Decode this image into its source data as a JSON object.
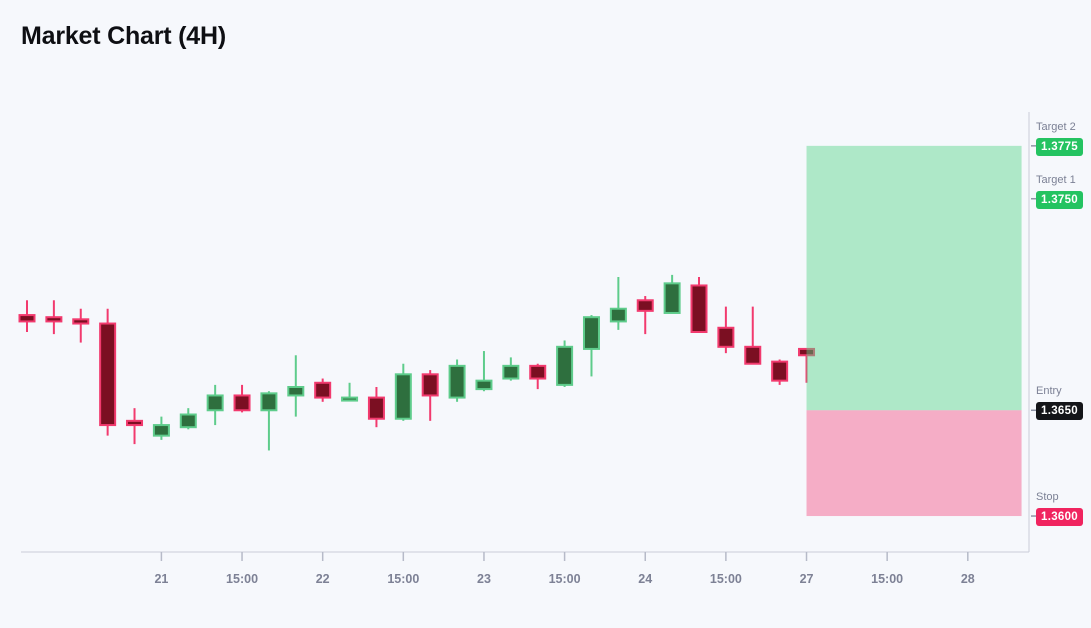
{
  "page": {
    "title": "Market Chart (4H)"
  },
  "chart_data": {
    "type": "candlestick",
    "title": "Market Chart (4H)",
    "timeframe": "4H",
    "ylim": [
      1.3583,
      1.3791
    ],
    "grid": false,
    "axis": {
      "x_axis_visible": true,
      "right_axis_visible": true
    },
    "candle_columns": [
      "open",
      "high",
      "low",
      "close"
    ],
    "candles": [
      [
        1.3695,
        1.3702,
        1.3687,
        1.3692
      ],
      [
        1.3694,
        1.3702,
        1.3686,
        1.3692
      ],
      [
        1.3693,
        1.3698,
        1.3682,
        1.3691
      ],
      [
        1.3691,
        1.3698,
        1.3638,
        1.3643
      ],
      [
        1.3645,
        1.3651,
        1.3634,
        1.3643
      ],
      [
        1.3638,
        1.3647,
        1.3636,
        1.3643
      ],
      [
        1.3642,
        1.3651,
        1.3641,
        1.3648
      ],
      [
        1.365,
        1.3662,
        1.3643,
        1.3657
      ],
      [
        1.3657,
        1.3662,
        1.3649,
        1.365
      ],
      [
        1.365,
        1.3659,
        1.3631,
        1.3658
      ],
      [
        1.3657,
        1.3676,
        1.3647,
        1.3661
      ],
      [
        1.3663,
        1.3665,
        1.3654,
        1.3656
      ],
      [
        1.3655,
        1.3663,
        1.3655,
        1.3656
      ],
      [
        1.3656,
        1.3661,
        1.3642,
        1.3646
      ],
      [
        1.3646,
        1.3672,
        1.3645,
        1.3667
      ],
      [
        1.3667,
        1.3669,
        1.3645,
        1.3657
      ],
      [
        1.3656,
        1.3674,
        1.3654,
        1.3671
      ],
      [
        1.366,
        1.3678,
        1.3659,
        1.3664
      ],
      [
        1.3665,
        1.3675,
        1.3664,
        1.3671
      ],
      [
        1.3671,
        1.3672,
        1.366,
        1.3665
      ],
      [
        1.3662,
        1.3683,
        1.3661,
        1.368
      ],
      [
        1.3679,
        1.3695,
        1.3666,
        1.3694
      ],
      [
        1.3692,
        1.3713,
        1.3688,
        1.3698
      ],
      [
        1.3702,
        1.3704,
        1.3686,
        1.3697
      ],
      [
        1.3696,
        1.3714,
        1.3696,
        1.371
      ],
      [
        1.3709,
        1.3713,
        1.3687,
        1.3687
      ],
      [
        1.3689,
        1.3699,
        1.3677,
        1.368
      ],
      [
        1.368,
        1.3699,
        1.3672,
        1.3672
      ],
      [
        1.3673,
        1.3674,
        1.3662,
        1.3664
      ],
      [
        1.3679,
        1.3679,
        1.3663,
        1.3676
      ]
    ],
    "x_ticks": [
      {
        "label": "21",
        "index": 5
      },
      {
        "label": "15:00",
        "index": 8
      },
      {
        "label": "22",
        "index": 11
      },
      {
        "label": "15:00",
        "index": 14
      },
      {
        "label": "23",
        "index": 17
      },
      {
        "label": "15:00",
        "index": 20
      },
      {
        "label": "24",
        "index": 23
      },
      {
        "label": "15:00",
        "index": 26
      },
      {
        "label": "27",
        "index": 29
      },
      {
        "label": "15:00",
        "index": 32
      },
      {
        "label": "28",
        "index": 35
      }
    ],
    "price_lines": [
      {
        "id": "target2",
        "label": "Target 2",
        "value": "1.3775",
        "price": 1.3775,
        "badge_bg": "#24c361",
        "badge_text": "#ffffff"
      },
      {
        "id": "target1",
        "label": "Target 1",
        "value": "1.3750",
        "price": 1.375,
        "badge_bg": "#24c361",
        "badge_text": "#ffffff"
      },
      {
        "id": "entry",
        "label": "Entry",
        "value": "1.3650",
        "price": 1.365,
        "badge_bg": "#141519",
        "badge_text": "#ffffff"
      },
      {
        "id": "stop",
        "label": "Stop",
        "value": "1.3600",
        "price": 1.36,
        "badge_bg": "#f0245f",
        "badge_text": "#ffffff"
      }
    ],
    "zones": [
      {
        "name": "profit-zone",
        "from_price": 1.365,
        "to_price": 1.3775,
        "start_index": 29,
        "end_index": 37,
        "color": "rgba(86,213,137,0.45)"
      },
      {
        "name": "loss-zone",
        "from_price": 1.36,
        "to_price": 1.365,
        "start_index": 29,
        "end_index": 37,
        "color": "rgba(243,97,144,0.5)"
      }
    ],
    "style": {
      "background": "#f6f8fc",
      "up_fill": "#2e6f3e",
      "up_stroke": "#5ecc8b",
      "down_fill": "#7b0f22",
      "down_stroke": "#f23a6e",
      "axis_line_color": "#c9cdd8",
      "tick_mark_color": "#b6bac8",
      "tick_label_color": "#7d8195",
      "rail_label_color": "#7c8195",
      "rail_dash_color": "#8f94a6"
    }
  }
}
